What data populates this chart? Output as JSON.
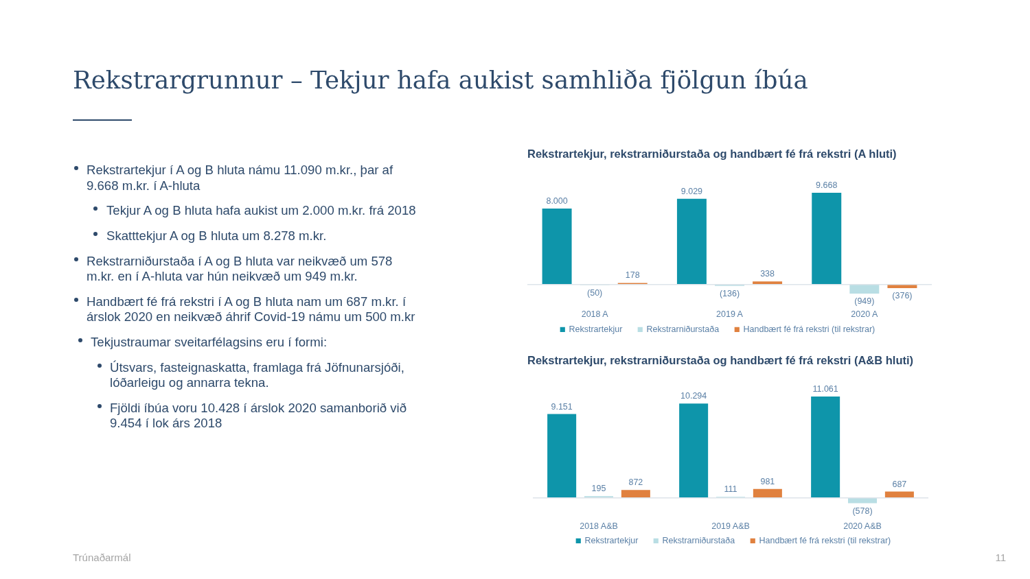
{
  "chart_data": [
    {
      "type": "other",
      "title": "Rekstrargrunnur – Tekjur hafa aukist samhliða fjölgun íbúa",
      "annotations": [
        "Rekstrartekjur í A og B hluta námu 11.090 m.kr., þar af 9.668 m.kr. í A-hluta",
        "Tekjur A og B hluta hafa aukist um 2.000 m.kr. frá 2018",
        "Skatttekjur A og B hluta um 8.278 m.kr.",
        "Rekstrarniðurstaða í A og B hluta var neikvæð um 578 m.kr. en í A-hluta var hún neikvæð um 949 m.kr.",
        "Handbært fé frá rekstri í A og B hluta nam um 687 m.kr. í árslok 2020 en neikvæð áhrif Covid-19 námu um 500 m.kr",
        "Tekjustraumar sveitarfélagsins eru í formi:",
        "Útsvars, fasteignaskatta, framlaga frá Jöfnunarsjóði, lóðarleigu og annarra tekna.",
        "Fjöldi íbúa voru 10.428 í árslok 2020 samanborið við 9.454 í lok árs 2018",
        "Trúnaðarmál",
        "11"
      ]
    },
    {
      "type": "bar",
      "title": "Rekstrartekjur, rekstrarniðurstaða og handbært fé frá rekstri (A hluti)",
      "categories": [
        "2018 A",
        "2019 A",
        "2020 A"
      ],
      "series": [
        {
          "name": "Rekstrartekjur",
          "color": "#0e95aa",
          "values": [
            8000,
            9029,
            9668
          ],
          "value_labels": [
            "8.000",
            "9.029",
            "9.668"
          ]
        },
        {
          "name": "Rekstrarniðurstaða",
          "color": "#b9dee4",
          "values": [
            -50,
            -136,
            -949
          ],
          "value_labels": [
            "(50)",
            "(136)",
            "(949)"
          ]
        },
        {
          "name": "Handbært fé frá rekstri (til rekstrar)",
          "color": "#e0813f",
          "values": [
            178,
            338,
            -376
          ],
          "value_labels": [
            "178",
            "338",
            "(376)"
          ]
        }
      ],
      "legend": "bottom",
      "tick_labels": "x"
    },
    {
      "type": "bar",
      "title": "Rekstrartekjur, rekstrarniðurstaða og handbært fé frá rekstri (A&B hluti)",
      "categories": [
        "2018 A&B",
        "2019 A&B",
        "2020 A&B"
      ],
      "series": [
        {
          "name": "Rekstrartekjur",
          "color": "#0e95aa",
          "values": [
            9151,
            10294,
            11061
          ],
          "value_labels": [
            "9.151",
            "10.294",
            "11.061"
          ]
        },
        {
          "name": "Rekstrarniðurstaða",
          "color": "#b9dee4",
          "values": [
            195,
            111,
            -578
          ],
          "value_labels": [
            "195",
            "111",
            "(578)"
          ]
        },
        {
          "name": "Handbært fé frá rekstri (til rekstrar)",
          "color": "#e0813f",
          "values": [
            872,
            981,
            687
          ],
          "value_labels": [
            "872",
            "981",
            "687"
          ]
        }
      ],
      "legend": "bottom",
      "tick_labels": "x"
    }
  ]
}
